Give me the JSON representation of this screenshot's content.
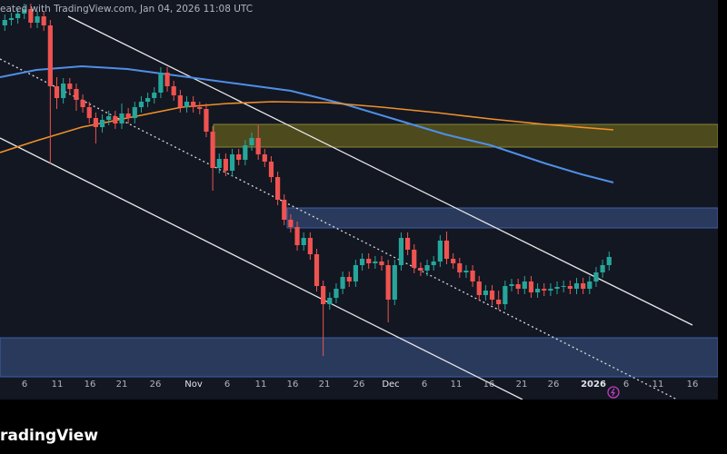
{
  "caption": "eated with TradingView.com, Jan 04, 2026 11:08 UTC",
  "brand": "radingView",
  "chart_data": {
    "type": "candlestick",
    "ylim": [
      76000,
      120000
    ],
    "up_color": "#26a69a",
    "down_color": "#ef5350",
    "x_labels": [
      "6",
      "11",
      "16",
      "21",
      "26",
      "Nov",
      "6",
      "11",
      "16",
      "21",
      "26",
      "Dec",
      "6",
      "11",
      "16",
      "21",
      "26",
      "2026",
      "6",
      "11",
      "16"
    ],
    "open": [
      117200,
      117800,
      118000,
      118500,
      119000,
      117500,
      118200,
      117200,
      110500,
      109200,
      110800,
      110200,
      109000,
      108200,
      107000,
      106000,
      106800,
      107200,
      106400,
      107500,
      107000,
      108200,
      108800,
      109200,
      109800,
      112000,
      110500,
      109500,
      108200,
      108800,
      108200,
      108000,
      105500,
      101500,
      102500,
      101200,
      103000,
      102400,
      104000,
      104800,
      103000,
      102200,
      100500,
      98000,
      95800,
      95000,
      93000,
      93800,
      92000,
      88500,
      86500,
      87200,
      88200,
      89500,
      89000,
      90800,
      91500,
      91000,
      91200,
      90800,
      87000,
      90800,
      93800,
      92500,
      90500,
      90200,
      90800,
      91200,
      93500,
      91500,
      91000,
      90000,
      90200,
      89000,
      87500,
      88000,
      87000,
      86500,
      88500,
      88700,
      88200,
      89000,
      87800,
      88200,
      88000,
      88200,
      88400,
      88500,
      88200,
      88800,
      88200,
      89000,
      90000,
      90800
    ],
    "high": [
      118400,
      118600,
      119100,
      119600,
      119600,
      118800,
      118800,
      117800,
      111500,
      111400,
      111400,
      110800,
      109600,
      108800,
      107600,
      107400,
      107800,
      107800,
      108600,
      108100,
      108800,
      109400,
      109800,
      110400,
      112600,
      112600,
      111100,
      110100,
      109400,
      109400,
      108800,
      108600,
      106100,
      103100,
      103100,
      103600,
      103600,
      104600,
      105400,
      106200,
      103600,
      102800,
      101100,
      98600,
      96400,
      95600,
      94400,
      94400,
      92600,
      89100,
      87800,
      88800,
      90100,
      90100,
      91400,
      92100,
      92100,
      91800,
      91800,
      91400,
      91400,
      94400,
      94400,
      93100,
      91100,
      91400,
      91800,
      94100,
      94500,
      92100,
      91600,
      90800,
      90800,
      89600,
      88600,
      88600,
      88000,
      89100,
      89300,
      89300,
      89600,
      89600,
      88800,
      88800,
      88800,
      89000,
      89100,
      89100,
      89400,
      89400,
      89600,
      90600,
      91400,
      92300
    ],
    "low": [
      116600,
      117200,
      117400,
      117900,
      116900,
      116900,
      116600,
      102000,
      108000,
      108600,
      109600,
      107800,
      107600,
      106400,
      104200,
      105400,
      106200,
      105800,
      105800,
      106400,
      106400,
      107600,
      108200,
      108600,
      109200,
      109900,
      108900,
      107600,
      107600,
      107600,
      107400,
      104900,
      99000,
      100900,
      100600,
      100600,
      101800,
      101800,
      103400,
      102400,
      101600,
      99900,
      97400,
      95200,
      94400,
      92400,
      92400,
      91400,
      87900,
      80800,
      85900,
      86600,
      87600,
      88400,
      88400,
      90200,
      90400,
      90400,
      90200,
      84500,
      86400,
      90200,
      91900,
      89900,
      89600,
      89600,
      90200,
      90600,
      90900,
      90400,
      89400,
      89400,
      88400,
      86900,
      86900,
      86400,
      85900,
      85900,
      87900,
      87600,
      87600,
      87200,
      87200,
      87400,
      87400,
      87600,
      87800,
      87600,
      87600,
      87600,
      87600,
      88400,
      89400,
      90200
    ],
    "close": [
      117800,
      118000,
      118500,
      119000,
      117500,
      118200,
      117200,
      110500,
      109200,
      110800,
      110200,
      109000,
      108200,
      107000,
      106000,
      106800,
      107200,
      106400,
      107500,
      107000,
      108200,
      108800,
      109200,
      109800,
      112000,
      110500,
      109500,
      108200,
      108800,
      108200,
      108000,
      105500,
      101500,
      102500,
      101200,
      103000,
      102400,
      104000,
      104800,
      103000,
      102200,
      100500,
      98000,
      95800,
      95000,
      93000,
      93800,
      92000,
      88500,
      86500,
      87200,
      88200,
      89500,
      89000,
      90800,
      91500,
      91000,
      91200,
      90800,
      87000,
      90800,
      93800,
      92500,
      90500,
      90200,
      90800,
      91200,
      93500,
      91500,
      91000,
      90000,
      90200,
      89000,
      87500,
      88000,
      87000,
      86500,
      88500,
      88700,
      88200,
      89000,
      87800,
      88200,
      88000,
      88200,
      88400,
      88500,
      88200,
      88800,
      88200,
      89000,
      90000,
      90800,
      91700
    ]
  }
}
